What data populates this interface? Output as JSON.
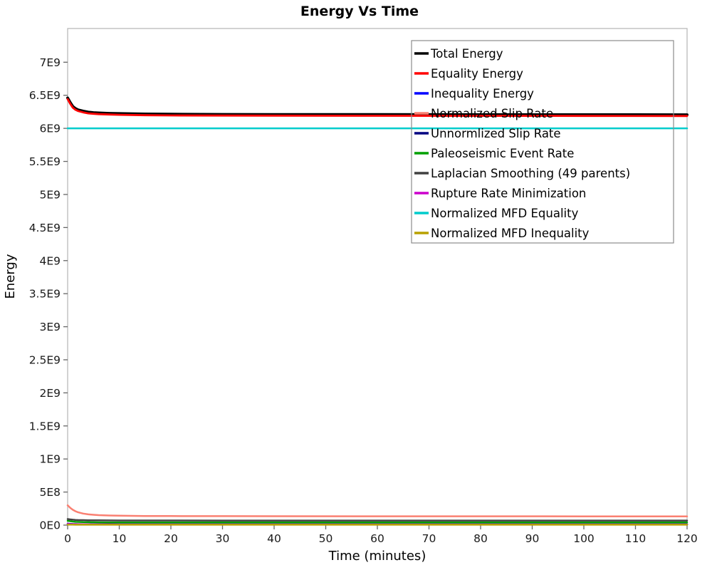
{
  "chart_data": {
    "type": "line",
    "title": "Energy Vs Time",
    "xlabel": "Time (minutes)",
    "ylabel": "Energy",
    "xlim": [
      0,
      120
    ],
    "ylim": [
      0,
      7510000000.0
    ],
    "grid": false,
    "legend_position": "top-right-inside",
    "x_ticks": [
      0,
      10,
      20,
      30,
      40,
      50,
      60,
      70,
      80,
      90,
      100,
      110,
      120
    ],
    "x_tick_labels": [
      "0",
      "10",
      "20",
      "30",
      "40",
      "50",
      "60",
      "70",
      "80",
      "90",
      "100",
      "110",
      "120"
    ],
    "y_ticks": [
      0,
      500000000.0,
      1000000000.0,
      1500000000.0,
      2000000000.0,
      2500000000.0,
      3000000000.0,
      3500000000.0,
      4000000000.0,
      4500000000.0,
      5000000000.0,
      5500000000.0,
      6000000000.0,
      6500000000.0,
      7000000000.0
    ],
    "y_tick_labels": [
      "0E0",
      "5E8",
      "1E9",
      "1.5E9",
      "2E9",
      "2.5E9",
      "3E9",
      "3.5E9",
      "4E9",
      "4.5E9",
      "5E9",
      "5.5E9",
      "6E9",
      "6.5E9",
      "7E9"
    ],
    "x": [
      0,
      0.5,
      1,
      1.5,
      2,
      3,
      4,
      5,
      6,
      8,
      10,
      15,
      20,
      30,
      40,
      60,
      80,
      100,
      120
    ],
    "series": [
      {
        "name": "Total Energy",
        "color": "#000000",
        "width": 4,
        "values": [
          6460000000.0,
          6390000000.0,
          6330000000.0,
          6300000000.0,
          6280000000.0,
          6260000000.0,
          6245000000.0,
          6238000000.0,
          6233000000.0,
          6227000000.0,
          6223000000.0,
          6217000000.0,
          6214000000.0,
          6211000000.0,
          6210000000.0,
          6208000000.0,
          6207000000.0,
          6206000000.0,
          6205000000.0
        ]
      },
      {
        "name": "Equality Energy",
        "color": "#ff0000",
        "width": 2.8,
        "values": [
          6442000000.0,
          6372000000.0,
          6312000000.0,
          6282000000.0,
          6262000000.0,
          6242000000.0,
          6227000000.0,
          6220000000.0,
          6215000000.0,
          6209000000.0,
          6205000000.0,
          6199000000.0,
          6196000000.0,
          6193000000.0,
          6192000000.0,
          6190000000.0,
          6189000000.0,
          6188000000.0,
          6187000000.0
        ]
      },
      {
        "name": "Inequality Energy",
        "color": "#0000ff",
        "width": 2.5,
        "values": [
          22000000.0,
          19000000.0,
          17000000.0,
          16000000.0,
          15000000.0,
          14000000.0,
          13500000.0,
          13000000.0,
          13000000.0,
          12500000.0,
          12000000.0,
          12000000.0,
          12000000.0,
          12000000.0,
          12000000.0,
          12000000.0,
          12000000.0,
          12000000.0,
          12000000.0
        ]
      },
      {
        "name": "Normalized Slip Rate",
        "color": "#fa8072",
        "width": 2.5,
        "values": [
          300000000.0,
          262000000.0,
          232000000.0,
          210000000.0,
          195000000.0,
          175000000.0,
          163000000.0,
          156000000.0,
          151000000.0,
          145000000.0,
          142000000.0,
          138000000.0,
          137000000.0,
          136000000.0,
          135000000.0,
          134000000.0,
          134000000.0,
          133000000.0,
          133000000.0
        ]
      },
      {
        "name": "Unnormlized Slip Rate",
        "color": "#000080",
        "width": 2.5,
        "values": [
          12000000.0,
          11000000.0,
          10000000.0,
          10000000.0,
          9000000.0,
          9000000.0,
          9000000.0,
          8000000.0,
          8000000.0,
          8000000.0,
          8000000.0,
          8000000.0,
          8000000.0,
          8000000.0,
          8000000.0,
          8000000.0,
          8000000.0,
          8000000.0,
          8000000.0
        ]
      },
      {
        "name": "Paleoseismic Event Rate",
        "color": "#00a000",
        "width": 2.5,
        "values": [
          66000000.0,
          59000000.0,
          54000000.0,
          50000000.0,
          48000000.0,
          45000000.0,
          44000000.0,
          43000000.0,
          42000000.0,
          41000000.0,
          41000000.0,
          40000000.0,
          40000000.0,
          40000000.0,
          40000000.0,
          40000000.0,
          40000000.0,
          40000000.0,
          40000000.0
        ]
      },
      {
        "name": "Laplacian Smoothing (49 parents)",
        "color": "#404040",
        "width": 2.5,
        "values": [
          92000000.0,
          86000000.0,
          82000000.0,
          79000000.0,
          77000000.0,
          75000000.0,
          73000000.0,
          72000000.0,
          72000000.0,
          71000000.0,
          70000000.0,
          70000000.0,
          70000000.0,
          69000000.0,
          69000000.0,
          69000000.0,
          69000000.0,
          69000000.0,
          69000000.0
        ]
      },
      {
        "name": "Rupture Rate Minimization",
        "color": "#cc00cc",
        "width": 2.5,
        "values": [
          18000000.0,
          16000000.0,
          15000000.0,
          14000000.0,
          13000000.0,
          12000000.0,
          12000000.0,
          11000000.0,
          11000000.0,
          11000000.0,
          10000000.0,
          10000000.0,
          10000000.0,
          10000000.0,
          10000000.0,
          10000000.0,
          10000000.0,
          10000000.0,
          10000000.0
        ]
      },
      {
        "name": "Normalized MFD Equality",
        "color": "#00cccc",
        "width": 2.5,
        "values": [
          6000000000.0,
          6000000000.0,
          6000000000.0,
          6000000000.0,
          6000000000.0,
          6000000000.0,
          6000000000.0,
          6000000000.0,
          6000000000.0,
          6000000000.0,
          6000000000.0,
          6000000000.0,
          6000000000.0,
          6000000000.0,
          6000000000.0,
          6000000000.0,
          6000000000.0,
          6000000000.0,
          6000000000.0
        ]
      },
      {
        "name": "Normalized MFD Inequality",
        "color": "#b8a000",
        "width": 2.5,
        "values": [
          9000000.0,
          8000000.0,
          8000000.0,
          7000000.0,
          7000000.0,
          7000000.0,
          7000000.0,
          7000000.0,
          7000000.0,
          7000000.0,
          7000000.0,
          7000000.0,
          7000000.0,
          7000000.0,
          7000000.0,
          7000000.0,
          7000000.0,
          7000000.0,
          7000000.0
        ]
      }
    ]
  }
}
